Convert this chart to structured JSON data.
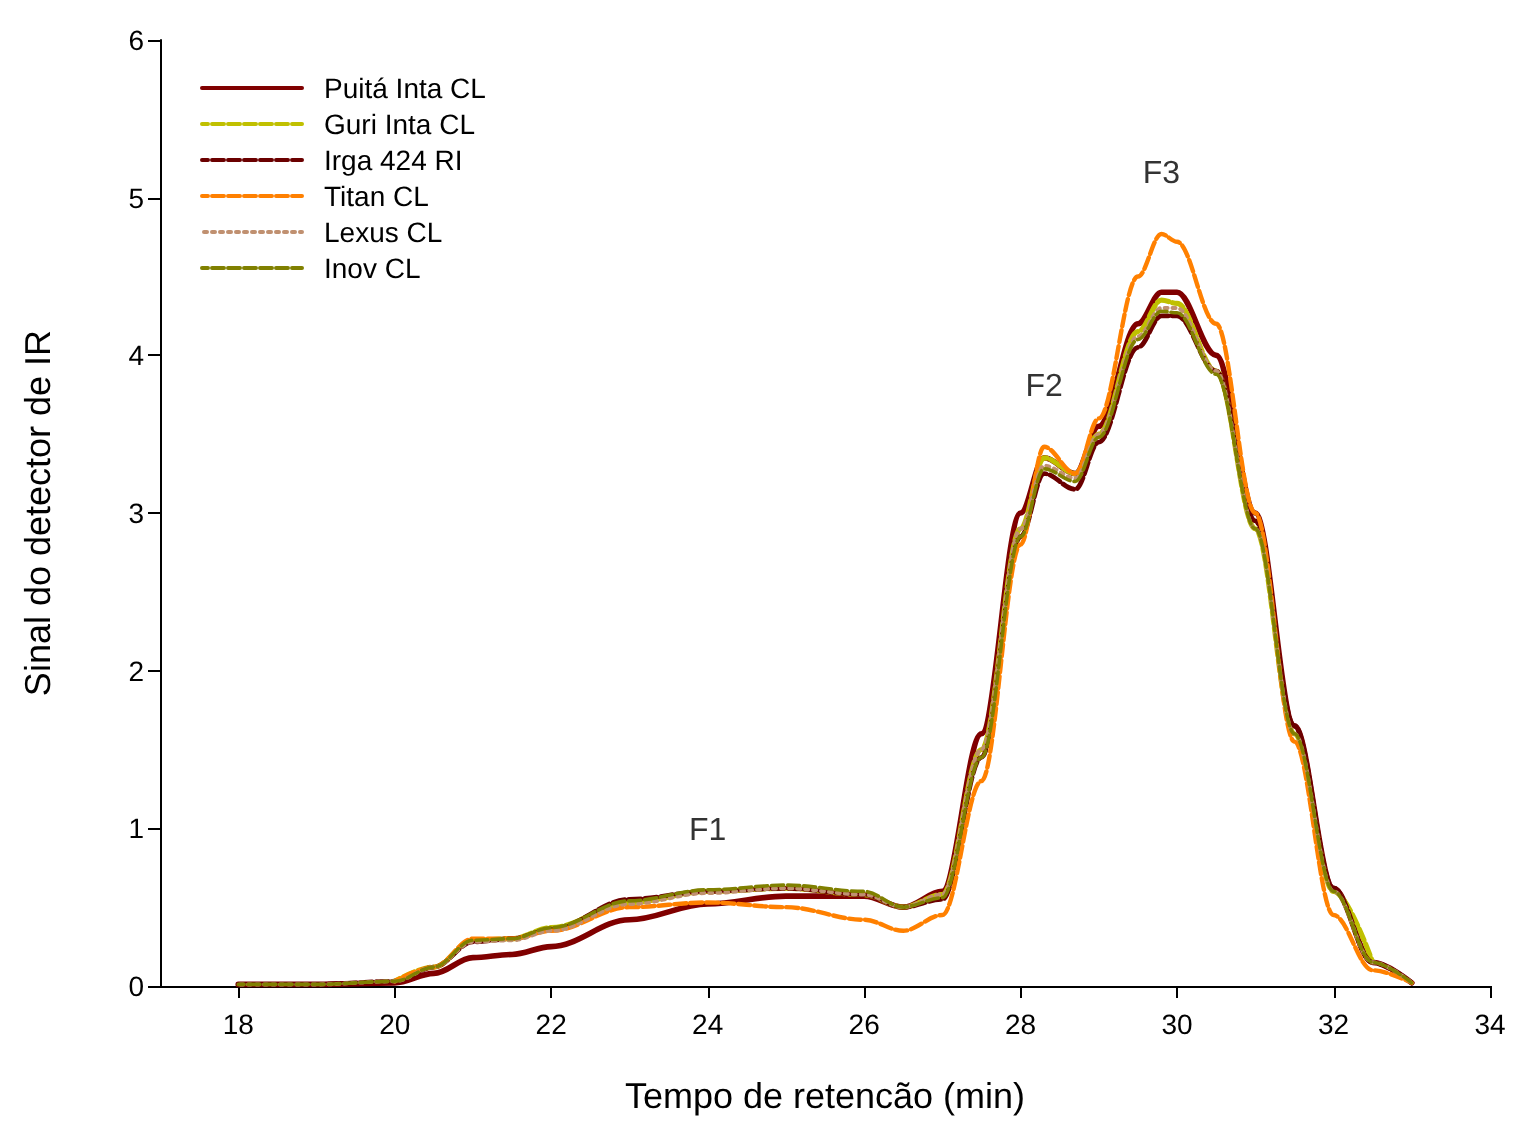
{
  "chart_data": {
    "type": "line",
    "xlabel": "Tempo de retencão (min)",
    "ylabel": "Sinal do detector de IR",
    "xlim": [
      17,
      34
    ],
    "xticks": [
      18,
      20,
      22,
      24,
      26,
      28,
      30,
      32,
      34
    ],
    "ylim": [
      0,
      6
    ],
    "yticks": [
      0,
      1,
      2,
      3,
      4,
      5,
      6
    ],
    "grid": false,
    "legend": "top left",
    "marker": "none",
    "x": [
      18,
      19,
      20,
      20.5,
      21,
      21.5,
      22,
      23,
      24,
      25,
      26,
      26.5,
      27,
      27.5,
      28,
      28.3,
      28.7,
      29,
      29.5,
      29.8,
      30,
      30.5,
      31,
      31.5,
      32,
      32.5,
      33
    ],
    "annotations": [
      {
        "text": "F1",
        "x": 24,
        "y": 0.6
      },
      {
        "text": "F2",
        "x": 28.3,
        "y": 3.42
      },
      {
        "text": "F3",
        "x": 29.8,
        "y": 4.77
      }
    ],
    "series": [
      {
        "name": "Puitá Inta CL",
        "color": "#800000",
        "line_style": "solid",
        "values": [
          0.01,
          0.01,
          0.02,
          0.08,
          0.18,
          0.2,
          0.25,
          0.42,
          0.52,
          0.57,
          0.57,
          0.5,
          0.6,
          1.6,
          3.0,
          3.35,
          3.25,
          3.55,
          4.2,
          4.4,
          4.4,
          4.0,
          3.0,
          1.65,
          0.62,
          0.15,
          0.02
        ]
      },
      {
        "name": "Guri Inta CL",
        "color": "#c0c000",
        "line_style": "dashed",
        "values": [
          null,
          null,
          0.03,
          0.12,
          0.29,
          0.3,
          0.37,
          0.53,
          0.6,
          0.62,
          0.58,
          0.5,
          0.58,
          1.5,
          2.9,
          3.35,
          3.25,
          3.5,
          4.15,
          4.35,
          4.33,
          3.9,
          2.9,
          1.6,
          0.6,
          0.15,
          null
        ]
      },
      {
        "name": "Irga 424 RI",
        "color": "#6b0000",
        "line_style": "dashed",
        "values": [
          0.01,
          0.01,
          0.03,
          0.12,
          0.28,
          0.3,
          0.36,
          0.55,
          0.6,
          0.62,
          0.58,
          0.5,
          0.55,
          1.45,
          2.85,
          3.25,
          3.15,
          3.45,
          4.05,
          4.25,
          4.25,
          3.9,
          2.95,
          1.65,
          0.62,
          0.15,
          0.02
        ]
      },
      {
        "name": "Titan CL",
        "color": "#ff8000",
        "line_style": "dashed",
        "values": [
          null,
          null,
          0.03,
          0.12,
          0.3,
          0.3,
          0.35,
          0.5,
          0.53,
          0.5,
          0.42,
          0.35,
          0.45,
          1.3,
          2.8,
          3.42,
          3.25,
          3.6,
          4.5,
          4.77,
          4.72,
          4.2,
          3.0,
          1.55,
          0.45,
          0.1,
          0.02
        ]
      },
      {
        "name": "Lexus CL",
        "color": "#c09070",
        "line_style": "dotted",
        "values": [
          0.01,
          0.01,
          0.03,
          0.12,
          0.28,
          0.29,
          0.35,
          0.52,
          0.59,
          0.62,
          0.58,
          0.5,
          0.58,
          1.5,
          2.9,
          3.3,
          3.22,
          3.5,
          4.12,
          4.3,
          4.3,
          3.9,
          2.9,
          1.6,
          0.6,
          0.15,
          0.02
        ]
      },
      {
        "name": "Inov CL",
        "color": "#808000",
        "line_style": "dashed",
        "values": [
          0.01,
          0.01,
          0.03,
          0.12,
          0.29,
          0.3,
          0.37,
          0.54,
          0.61,
          0.64,
          0.6,
          0.5,
          0.56,
          1.45,
          2.85,
          3.28,
          3.2,
          3.48,
          4.1,
          4.28,
          4.27,
          3.88,
          2.9,
          1.6,
          0.6,
          0.15,
          0.02
        ]
      }
    ]
  }
}
